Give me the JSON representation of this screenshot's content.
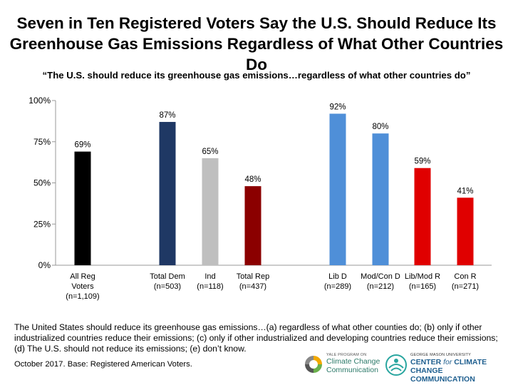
{
  "title": {
    "line1": "Seven in Ten Registered Voters Say the U.S. Should Reduce Its",
    "line2": "Greenhouse Gas Emissions Regardless of What Other Countries Do"
  },
  "subtitle": "“The U.S. should reduce its greenhouse gas emissions…regardless of what other countries do”",
  "chart_data": {
    "type": "bar",
    "categories": [
      [
        "All Reg",
        "Voters",
        "(n=1,109)"
      ],
      [
        "Total Dem",
        "(n=503)"
      ],
      [
        "Ind",
        "(n=118)"
      ],
      [
        "Total Rep",
        "(n=437)"
      ],
      [
        "Lib D",
        "(n=289)"
      ],
      [
        "Mod/Con D",
        "(n=212)"
      ],
      [
        "Lib/Mod R",
        "(n=165)"
      ],
      [
        "Con R",
        "(n=271)"
      ]
    ],
    "values": [
      69,
      87,
      65,
      48,
      92,
      80,
      59,
      41
    ],
    "data_labels": [
      "69%",
      "87%",
      "65%",
      "48%",
      "92%",
      "80%",
      "59%",
      "41%"
    ],
    "colors": [
      "#000000",
      "#1f3864",
      "#bfbfbf",
      "#8b0000",
      "#4f8fd8",
      "#4f8fd8",
      "#e00000",
      "#e00000"
    ],
    "ylim": [
      0,
      100
    ],
    "yticks": [
      "0%",
      "25%",
      "50%",
      "75%",
      "100%"
    ],
    "ytick_values": [
      0,
      25,
      50,
      75,
      100
    ],
    "grid": false
  },
  "footnote": "The United States should reduce its greenhouse gas emissions…(a) regardless of what other counties do; (b) only if other industrialized countries reduce their emissions; (c) only if other industrialized and developing countries reduce their emissions; (d) The U.S. should not reduce its emissions; (e) don’t know.",
  "source": "October 2017. Base: Registered American Voters.",
  "logos": {
    "yale": {
      "top": "YALE PROGRAM ON",
      "line1": "Climate Change",
      "line2": "Communication"
    },
    "gmu": {
      "top": "GEORGE MASON UNIVERSITY",
      "line1a": "CENTER ",
      "line1b": "for",
      "line1c": " CLIMATE CHANGE",
      "line2": "COMMUNICATION"
    }
  }
}
